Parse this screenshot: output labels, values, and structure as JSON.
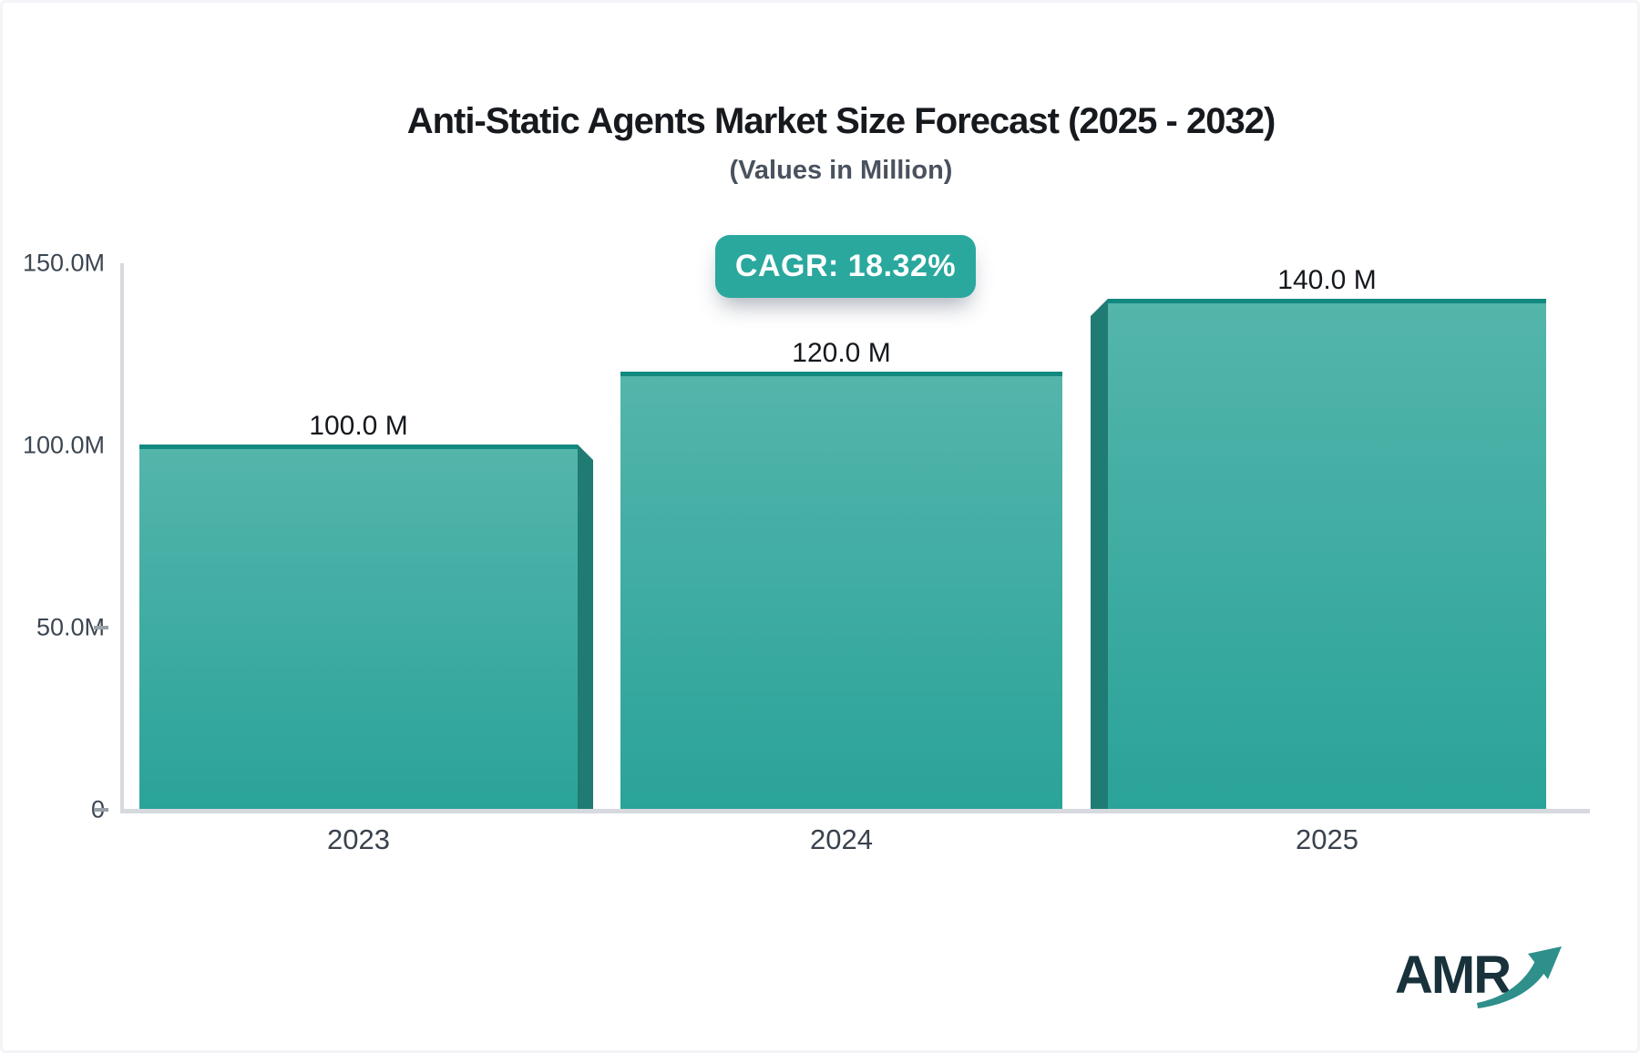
{
  "header": {
    "title": "Anti-Static Agents Market Size Forecast (2025 - 2032)",
    "subtitle": "(Values in Million)",
    "cagr_badge_label": "CAGR: 18.32%"
  },
  "logo": {
    "text": "AMR"
  },
  "chart_data": {
    "type": "bar",
    "title": "Anti-Static Agents Market Size Forecast (2025 - 2032)",
    "subtitle": "(Values in Million)",
    "unit": "Million",
    "cagr_percent": 18.32,
    "categories": [
      "2023",
      "2024",
      "2025"
    ],
    "values": [
      100.0,
      120.0,
      140.0
    ],
    "bar_labels": [
      "100.0 M",
      "120.0 M",
      "140.0 M"
    ],
    "ylim": [
      0,
      150
    ],
    "y_ticks": [
      {
        "label": "150.0M",
        "value": 150,
        "dash": false
      },
      {
        "label": "100.0M",
        "value": 100,
        "dash": false
      },
      {
        "label": "50.0M",
        "value": 50,
        "dash": true
      },
      {
        "label": "0",
        "value": 0,
        "dash": true
      }
    ],
    "grid": false,
    "legend": "none",
    "colors": {
      "bar_gradient_top": "#54b5ab",
      "bar_gradient_bottom": "#2aa399",
      "bar_top_border": "#12897f",
      "bar_side_shade": "#1f7b74",
      "badge_background": "#2aa89e",
      "axis_line": "#d6d9de",
      "tick_text": "#3d4752",
      "value_label_text": "#14181d",
      "title_text": "#16191d",
      "subtitle_text": "#49525e",
      "logo_text": "#18313b",
      "logo_arrow": "#2e8f8b"
    }
  }
}
